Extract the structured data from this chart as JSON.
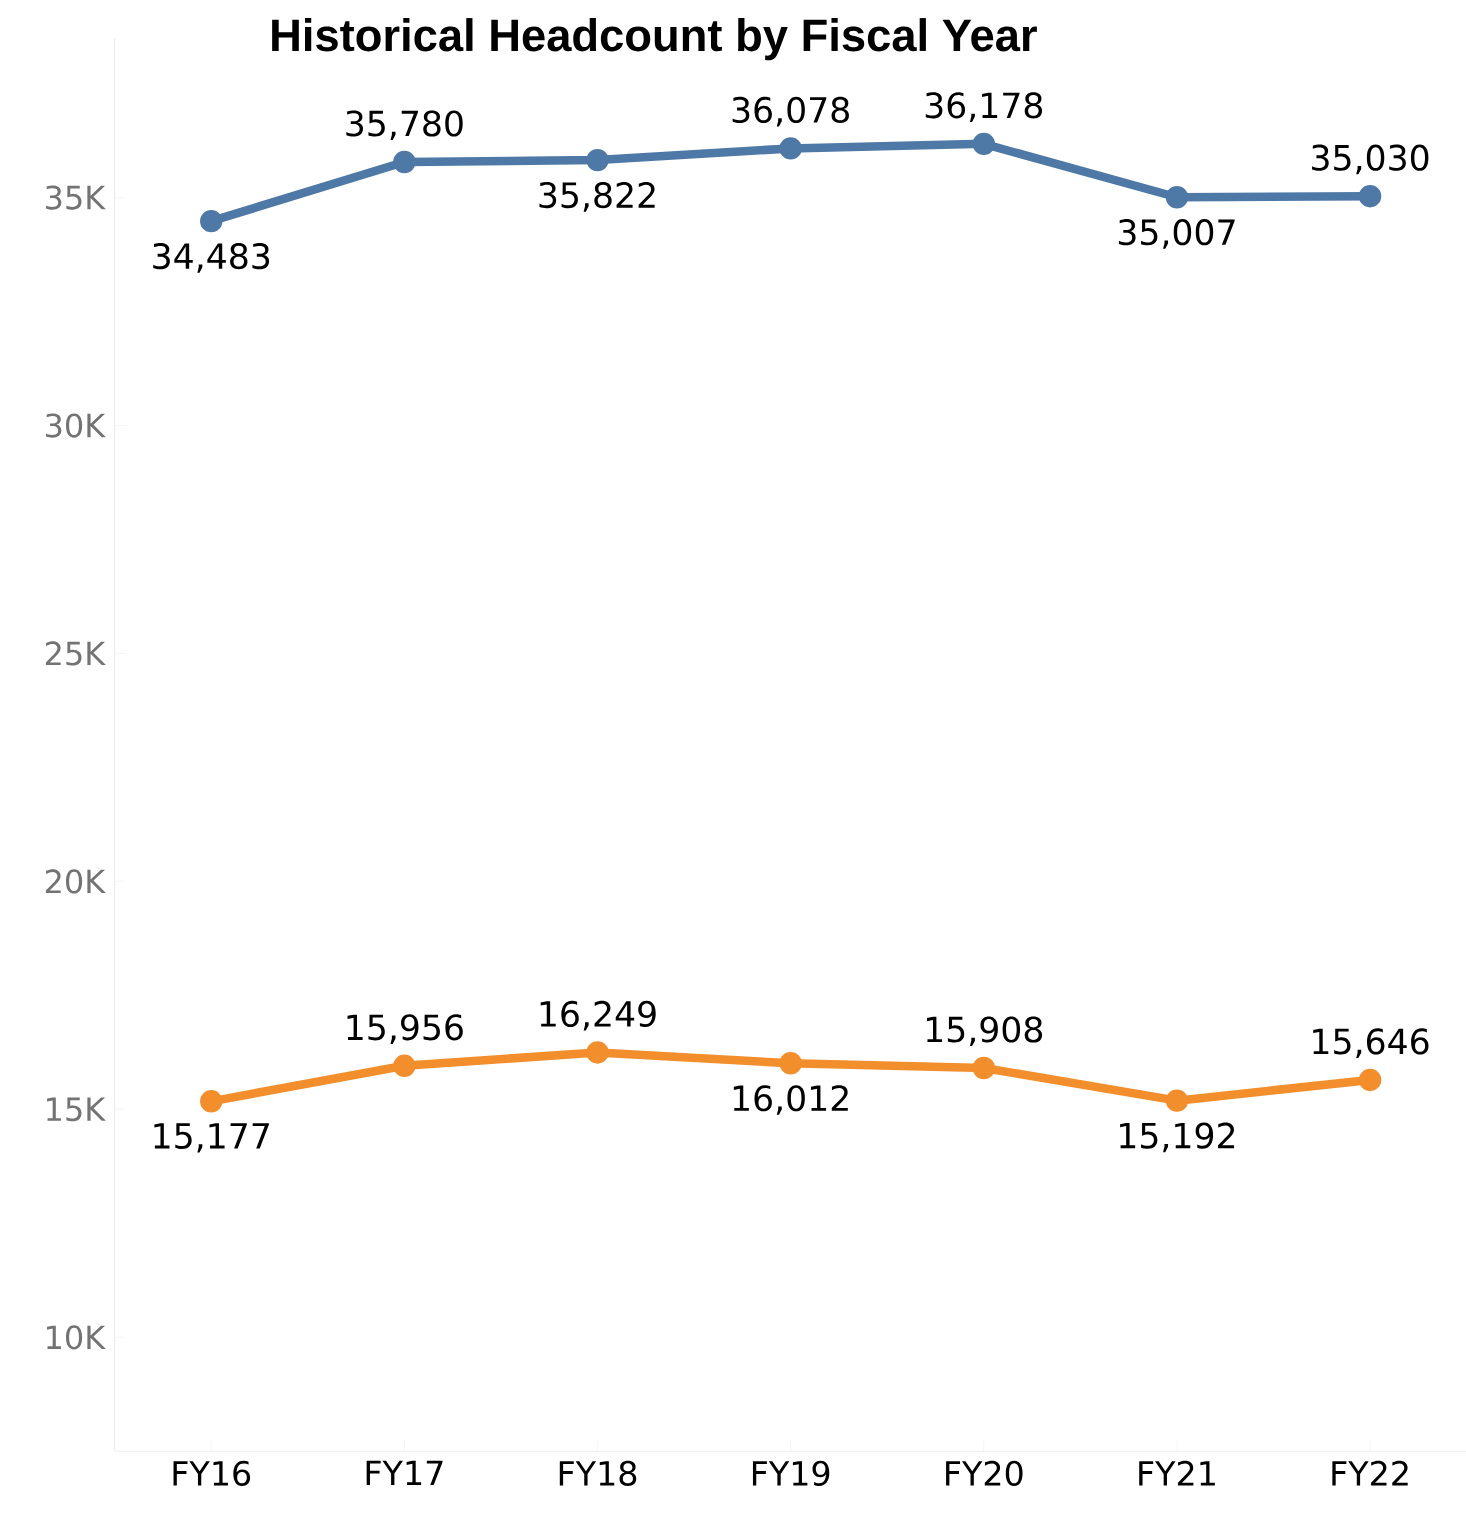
{
  "chart_data": {
    "type": "line",
    "title": "Historical Headcount by Fiscal Year",
    "categories": [
      "FY16",
      "FY17",
      "FY18",
      "FY19",
      "FY20",
      "FY21",
      "FY22"
    ],
    "series": [
      {
        "color": "#4e79a7",
        "values": [
          34483,
          35780,
          35822,
          36078,
          36178,
          35007,
          35030
        ],
        "value_labels": [
          "34,483",
          "35,780",
          "35,822",
          "36,078",
          "36,178",
          "35,007",
          "35,030"
        ]
      },
      {
        "color": "#f28e2b",
        "values": [
          15177,
          15956,
          16249,
          16012,
          15908,
          15192,
          15646
        ],
        "value_labels": [
          "15,177",
          "15,956",
          "16,249",
          "16,012",
          "15,908",
          "15,192",
          "15,646"
        ]
      }
    ],
    "ylim": [
      7500,
      38500
    ],
    "yticks": [
      {
        "value": 10000,
        "label": "10K"
      },
      {
        "value": 15000,
        "label": "15K"
      },
      {
        "value": 20000,
        "label": "20K"
      },
      {
        "value": 25000,
        "label": "25K"
      },
      {
        "value": 30000,
        "label": "30K"
      },
      {
        "value": 35000,
        "label": "35K"
      }
    ],
    "grid": false,
    "marker": "circle",
    "line_style": "solid"
  }
}
